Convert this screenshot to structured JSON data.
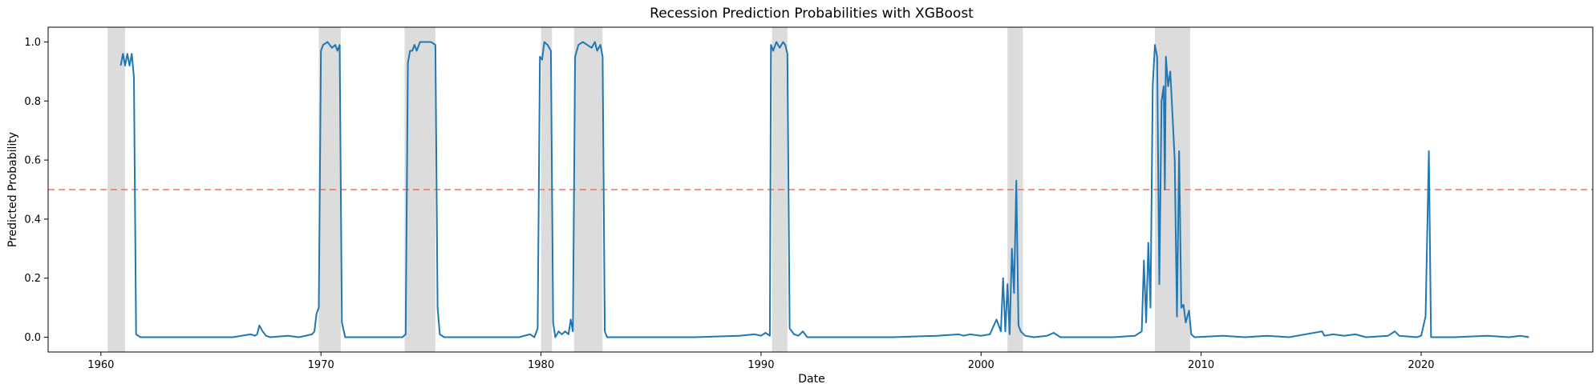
{
  "chart_data": {
    "type": "line",
    "title": "Recession Prediction Probabilities with XGBoost",
    "xlabel": "Date",
    "ylabel": "Predicted Probability",
    "xlim": [
      1957.6,
      2027.8
    ],
    "ylim": [
      -0.05,
      1.05
    ],
    "x_ticks": [
      1960,
      1970,
      1980,
      1990,
      2000,
      2010,
      2020
    ],
    "y_ticks": [
      0.0,
      0.2,
      0.4,
      0.6,
      0.8,
      1.0
    ],
    "y_tick_labels": [
      "0.0",
      "0.2",
      "0.4",
      "0.6",
      "0.8",
      "1.0"
    ],
    "grid": false,
    "threshold": {
      "y": 0.5,
      "color": "#ff5a5a",
      "style": "dashed"
    },
    "recessions": [
      [
        1960.3,
        1961.1
      ],
      [
        1969.9,
        1970.9
      ],
      [
        1973.8,
        1975.2
      ],
      [
        1980.0,
        1980.5
      ],
      [
        1981.5,
        1982.8
      ],
      [
        1990.5,
        1991.2
      ],
      [
        2001.2,
        2001.9
      ],
      [
        2007.9,
        2009.5
      ]
    ],
    "shade_color": "#dcdcdc",
    "line_color": "#1f77b4",
    "series": [
      {
        "points": [
          [
            1960.9,
            0.92
          ],
          [
            1961.0,
            0.96
          ],
          [
            1961.1,
            0.92
          ],
          [
            1961.2,
            0.96
          ],
          [
            1961.3,
            0.92
          ],
          [
            1961.4,
            0.96
          ],
          [
            1961.5,
            0.88
          ],
          [
            1961.6,
            0.01
          ],
          [
            1961.8,
            0.0
          ],
          [
            1963.0,
            0.0
          ],
          [
            1964.0,
            0.0
          ],
          [
            1965.0,
            0.0
          ],
          [
            1966.0,
            0.0
          ],
          [
            1966.8,
            0.01
          ],
          [
            1967.0,
            0.005
          ],
          [
            1967.1,
            0.01
          ],
          [
            1967.2,
            0.04
          ],
          [
            1967.35,
            0.02
          ],
          [
            1967.5,
            0.005
          ],
          [
            1967.7,
            0.0
          ],
          [
            1968.5,
            0.005
          ],
          [
            1969.0,
            0.0
          ],
          [
            1969.6,
            0.01
          ],
          [
            1969.7,
            0.02
          ],
          [
            1969.8,
            0.08
          ],
          [
            1969.9,
            0.1
          ],
          [
            1970.0,
            0.97
          ],
          [
            1970.1,
            0.99
          ],
          [
            1970.3,
            1.0
          ],
          [
            1970.5,
            0.98
          ],
          [
            1970.65,
            0.99
          ],
          [
            1970.75,
            0.97
          ],
          [
            1970.85,
            0.99
          ],
          [
            1970.95,
            0.05
          ],
          [
            1971.1,
            0.0
          ],
          [
            1972.0,
            0.0
          ],
          [
            1973.0,
            0.0
          ],
          [
            1973.7,
            0.0
          ],
          [
            1973.85,
            0.01
          ],
          [
            1973.95,
            0.93
          ],
          [
            1974.05,
            0.97
          ],
          [
            1974.15,
            0.97
          ],
          [
            1974.25,
            0.99
          ],
          [
            1974.35,
            0.97
          ],
          [
            1974.5,
            1.0
          ],
          [
            1974.7,
            1.0
          ],
          [
            1975.0,
            1.0
          ],
          [
            1975.2,
            0.99
          ],
          [
            1975.3,
            0.1
          ],
          [
            1975.4,
            0.01
          ],
          [
            1975.6,
            0.0
          ],
          [
            1977.0,
            0.0
          ],
          [
            1979.0,
            0.0
          ],
          [
            1979.5,
            0.01
          ],
          [
            1979.7,
            0.0
          ],
          [
            1979.85,
            0.03
          ],
          [
            1979.95,
            0.95
          ],
          [
            1980.05,
            0.94
          ],
          [
            1980.15,
            1.0
          ],
          [
            1980.3,
            0.99
          ],
          [
            1980.45,
            0.97
          ],
          [
            1980.55,
            0.05
          ],
          [
            1980.65,
            0.0
          ],
          [
            1980.8,
            0.02
          ],
          [
            1980.95,
            0.01
          ],
          [
            1981.1,
            0.02
          ],
          [
            1981.25,
            0.01
          ],
          [
            1981.35,
            0.06
          ],
          [
            1981.45,
            0.02
          ],
          [
            1981.55,
            0.95
          ],
          [
            1981.7,
            0.99
          ],
          [
            1981.9,
            1.0
          ],
          [
            1982.1,
            0.99
          ],
          [
            1982.3,
            0.98
          ],
          [
            1982.45,
            1.0
          ],
          [
            1982.55,
            0.97
          ],
          [
            1982.7,
            0.99
          ],
          [
            1982.8,
            0.95
          ],
          [
            1982.9,
            0.02
          ],
          [
            1983.0,
            0.0
          ],
          [
            1985.0,
            0.0
          ],
          [
            1987.0,
            0.0
          ],
          [
            1989.0,
            0.005
          ],
          [
            1989.7,
            0.01
          ],
          [
            1990.0,
            0.005
          ],
          [
            1990.2,
            0.015
          ],
          [
            1990.4,
            0.005
          ],
          [
            1990.45,
            0.99
          ],
          [
            1990.55,
            0.97
          ],
          [
            1990.7,
            1.0
          ],
          [
            1990.85,
            0.98
          ],
          [
            1991.0,
            1.0
          ],
          [
            1991.1,
            0.99
          ],
          [
            1991.2,
            0.96
          ],
          [
            1991.3,
            0.03
          ],
          [
            1991.5,
            0.01
          ],
          [
            1991.7,
            0.005
          ],
          [
            1991.9,
            0.02
          ],
          [
            1992.1,
            0.0
          ],
          [
            1994.0,
            0.0
          ],
          [
            1996.0,
            0.0
          ],
          [
            1998.0,
            0.005
          ],
          [
            1999.0,
            0.01
          ],
          [
            1999.2,
            0.005
          ],
          [
            1999.5,
            0.01
          ],
          [
            2000.0,
            0.005
          ],
          [
            2000.4,
            0.01
          ],
          [
            2000.7,
            0.06
          ],
          [
            2000.9,
            0.02
          ],
          [
            2001.0,
            0.2
          ],
          [
            2001.1,
            0.02
          ],
          [
            2001.2,
            0.18
          ],
          [
            2001.3,
            0.01
          ],
          [
            2001.4,
            0.3
          ],
          [
            2001.5,
            0.15
          ],
          [
            2001.6,
            0.53
          ],
          [
            2001.7,
            0.04
          ],
          [
            2001.8,
            0.02
          ],
          [
            2002.0,
            0.005
          ],
          [
            2002.4,
            0.0
          ],
          [
            2003.0,
            0.005
          ],
          [
            2003.3,
            0.015
          ],
          [
            2003.6,
            0.0
          ],
          [
            2005.0,
            0.0
          ],
          [
            2006.0,
            0.0
          ],
          [
            2007.0,
            0.005
          ],
          [
            2007.3,
            0.02
          ],
          [
            2007.4,
            0.26
          ],
          [
            2007.5,
            0.05
          ],
          [
            2007.6,
            0.32
          ],
          [
            2007.7,
            0.1
          ],
          [
            2007.8,
            0.85
          ],
          [
            2007.9,
            0.99
          ],
          [
            2008.0,
            0.95
          ],
          [
            2008.1,
            0.18
          ],
          [
            2008.2,
            0.8
          ],
          [
            2008.3,
            0.85
          ],
          [
            2008.35,
            0.5
          ],
          [
            2008.4,
            0.95
          ],
          [
            2008.5,
            0.85
          ],
          [
            2008.6,
            0.9
          ],
          [
            2008.7,
            0.75
          ],
          [
            2008.8,
            0.6
          ],
          [
            2008.9,
            0.07
          ],
          [
            2009.0,
            0.63
          ],
          [
            2009.1,
            0.1
          ],
          [
            2009.2,
            0.11
          ],
          [
            2009.3,
            0.05
          ],
          [
            2009.45,
            0.09
          ],
          [
            2009.55,
            0.01
          ],
          [
            2009.7,
            0.0
          ],
          [
            2011.0,
            0.005
          ],
          [
            2012.0,
            0.0
          ],
          [
            2013.0,
            0.005
          ],
          [
            2014.0,
            0.0
          ],
          [
            2015.5,
            0.02
          ],
          [
            2015.6,
            0.005
          ],
          [
            2016.0,
            0.01
          ],
          [
            2016.5,
            0.005
          ],
          [
            2017.0,
            0.01
          ],
          [
            2017.5,
            0.0
          ],
          [
            2018.5,
            0.005
          ],
          [
            2018.8,
            0.02
          ],
          [
            2019.0,
            0.005
          ],
          [
            2019.8,
            0.0
          ],
          [
            2020.0,
            0.005
          ],
          [
            2020.2,
            0.07
          ],
          [
            2020.35,
            0.63
          ],
          [
            2020.45,
            0.0
          ],
          [
            2021.5,
            0.0
          ],
          [
            2023.0,
            0.005
          ],
          [
            2024.0,
            0.0
          ],
          [
            2024.5,
            0.005
          ],
          [
            2024.9,
            0.0
          ]
        ]
      }
    ]
  }
}
